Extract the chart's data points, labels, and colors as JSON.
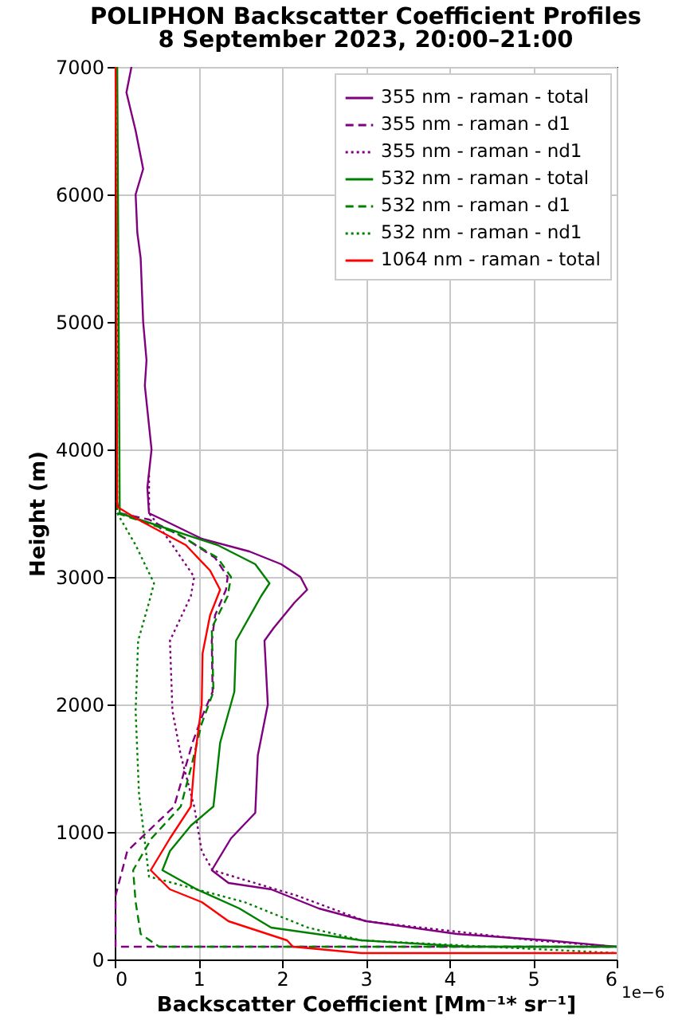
{
  "chart_data": {
    "type": "line",
    "title": "POLIPHON Backscatter Coefficient Profiles",
    "subtitle": "8 September 2023, 20:00–21:00",
    "xlabel": "Backscatter Coefficient [Mm⁻¹* sr⁻¹]",
    "ylabel": "Height (m)",
    "annotations": [
      "1e−6"
    ],
    "xlim": [
      0,
      6
    ],
    "ylim": [
      0,
      7000
    ],
    "xticks": [
      0,
      1,
      2,
      3,
      4,
      5,
      6
    ],
    "yticks": [
      0,
      1000,
      2000,
      3000,
      4000,
      5000,
      6000,
      7000
    ],
    "grid": true,
    "legend": "top right",
    "series": [
      {
        "name": "355 nm - raman - total",
        "color": "#800080",
        "line_style": "solid",
        "x": [
          0.2,
          0.14,
          0.25,
          0.34,
          0.25,
          0.27,
          0.31,
          0.34,
          0.38,
          0.36,
          0.44,
          0.39,
          0.41,
          0.57,
          1.04,
          1.61,
          1.99,
          2.22,
          2.3,
          2.15,
          1.9,
          1.79,
          1.83,
          1.71,
          1.68,
          1.39,
          1.16,
          1.36,
          1.87,
          2.44,
          3.01,
          4.09,
          5.17,
          6.0
        ],
        "values": [
          7000,
          6800,
          6500,
          6200,
          6000,
          5700,
          5500,
          5000,
          4700,
          4500,
          4000,
          3700,
          3500,
          3450,
          3300,
          3200,
          3100,
          3000,
          2900,
          2800,
          2600,
          2500,
          2000,
          1600,
          1150,
          950,
          700,
          600,
          550,
          400,
          300,
          200,
          150,
          100
        ]
      },
      {
        "name": "355 nm - raman - d1",
        "color": "#800080",
        "line_style": "dashed",
        "x": [
          0.02,
          0.06,
          0.41,
          0.85,
          1.2,
          1.35,
          1.33,
          1.2,
          1.16,
          1.17,
          1.04,
          0.93,
          0.71,
          0.47,
          0.15,
          0.01,
          0.01,
          0.05,
          6.0
        ],
        "values": [
          3600,
          3500,
          3450,
          3300,
          3150,
          3000,
          2900,
          2700,
          2500,
          2100,
          1900,
          1700,
          1200,
          1050,
          850,
          500,
          100,
          100,
          100
        ]
      },
      {
        "name": "355 nm - raman - nd1",
        "color": "#800080",
        "line_style": "dotted",
        "x": [
          0.41,
          0.41,
          0.47,
          0.69,
          0.95,
          0.91,
          0.66,
          0.69,
          0.79,
          0.95,
          1.04,
          1.17,
          2.18,
          3.0,
          5.0,
          6.0
        ],
        "values": [
          3800,
          3500,
          3450,
          3250,
          3000,
          2850,
          2500,
          1950,
          1600,
          1200,
          850,
          700,
          500,
          300,
          150,
          100
        ]
      },
      {
        "name": "532 nm - raman - total",
        "color": "#008000",
        "line_style": "solid",
        "x": [
          0.03,
          0.06,
          0.53,
          1.23,
          1.68,
          1.85,
          1.75,
          1.45,
          1.43,
          1.26,
          1.18,
          0.91,
          0.66,
          0.57,
          0.98,
          1.49,
          1.87,
          2.95,
          4.22,
          6.0
        ],
        "values": [
          7000,
          3500,
          3400,
          3250,
          3100,
          2950,
          2850,
          2500,
          2100,
          1700,
          1200,
          1050,
          850,
          700,
          550,
          400,
          250,
          150,
          100,
          100
        ]
      },
      {
        "name": "532 nm - raman - d1",
        "color": "#008000",
        "line_style": "dashed",
        "x": [
          0.03,
          0.72,
          1.23,
          1.39,
          1.35,
          1.16,
          1.18,
          1.04,
          0.91,
          0.79,
          0.44,
          0.22,
          0.25,
          0.31,
          0.53,
          6.0
        ],
        "values": [
          3500,
          3350,
          3150,
          3000,
          2850,
          2600,
          2100,
          1850,
          1500,
          1200,
          950,
          700,
          450,
          200,
          100,
          100
        ]
      },
      {
        "name": "532 nm - raman - nd1",
        "color": "#008000",
        "line_style": "dotted",
        "x": [
          0.02,
          0.03,
          0.25,
          0.47,
          0.41,
          0.28,
          0.25,
          0.29,
          0.41,
          1.55,
          2.31,
          2.95,
          6.0
        ],
        "values": [
          7000,
          3500,
          3250,
          2950,
          2800,
          2500,
          1950,
          1300,
          650,
          450,
          250,
          150,
          50
        ]
      },
      {
        "name": "1064 nm - raman - total",
        "color": "#ff0000",
        "line_style": "solid",
        "x": [
          0.01,
          0.03,
          0.28,
          0.85,
          1.14,
          1.26,
          1.14,
          1.05,
          1.04,
          0.96,
          0.91,
          0.66,
          0.43,
          0.66,
          1.04,
          1.36,
          2.06,
          2.13,
          2.95,
          6.0
        ],
        "values": [
          7000,
          3550,
          3450,
          3250,
          3050,
          2900,
          2700,
          2400,
          2000,
          1600,
          1200,
          950,
          700,
          550,
          450,
          300,
          150,
          100,
          50,
          50
        ]
      }
    ]
  }
}
